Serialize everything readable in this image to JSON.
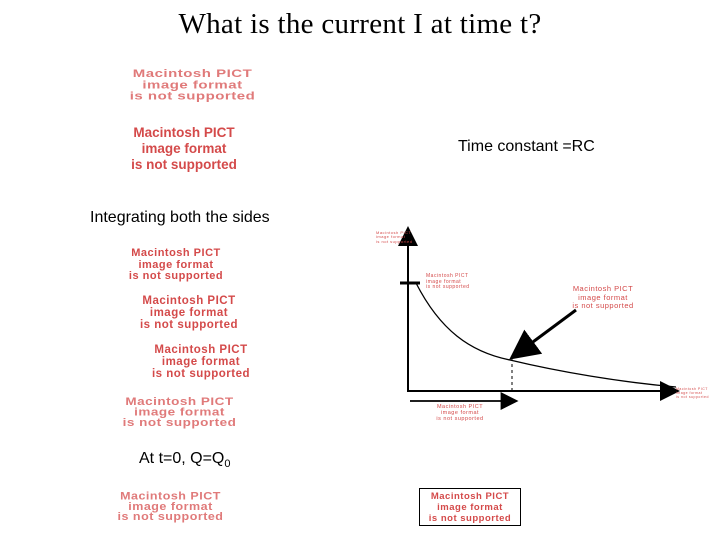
{
  "title": "What is the current I  at time t?",
  "time_constant": "Time constant =RC",
  "integrating": "Integrating both the sides",
  "initial_cond_main": "At t=0, Q=Q",
  "initial_cond_sub": "0",
  "placeholder": {
    "line1": "Macintosh PICT",
    "line2": "image format",
    "line3": "is not supported"
  },
  "colors": {
    "placeholder": "#d44a4a",
    "axis": "#000000"
  }
}
